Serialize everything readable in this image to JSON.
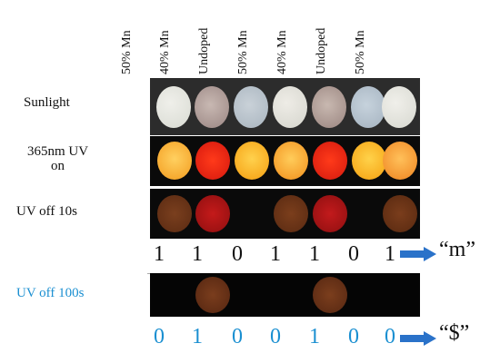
{
  "columns": [
    {
      "label": "50% Mn"
    },
    {
      "label": "40% Mn"
    },
    {
      "label": "Undoped"
    },
    {
      "label": "50% Mn"
    },
    {
      "label": "40% Mn"
    },
    {
      "label": "Undoped"
    },
    {
      "label": "50% Mn"
    }
  ],
  "rows": {
    "sunlight": {
      "label": "Sunlight"
    },
    "uv_on": {
      "label_line1": "365nm UV",
      "label_line2": "on"
    },
    "uv_off_10": {
      "label": "UV off 10s"
    },
    "uv_off_100": {
      "label": "UV off 100s"
    }
  },
  "code_row_1": {
    "bits": [
      "1",
      "1",
      "0",
      "1",
      "1",
      "0",
      "1"
    ],
    "character": "“m”"
  },
  "code_row_2": {
    "bits": [
      "0",
      "1",
      "0",
      "0",
      "1",
      "0",
      "0"
    ],
    "character": "“$”"
  },
  "colors": {
    "label_blue": "#1a8fd1",
    "arrow_blue": "#2a72c9"
  }
}
